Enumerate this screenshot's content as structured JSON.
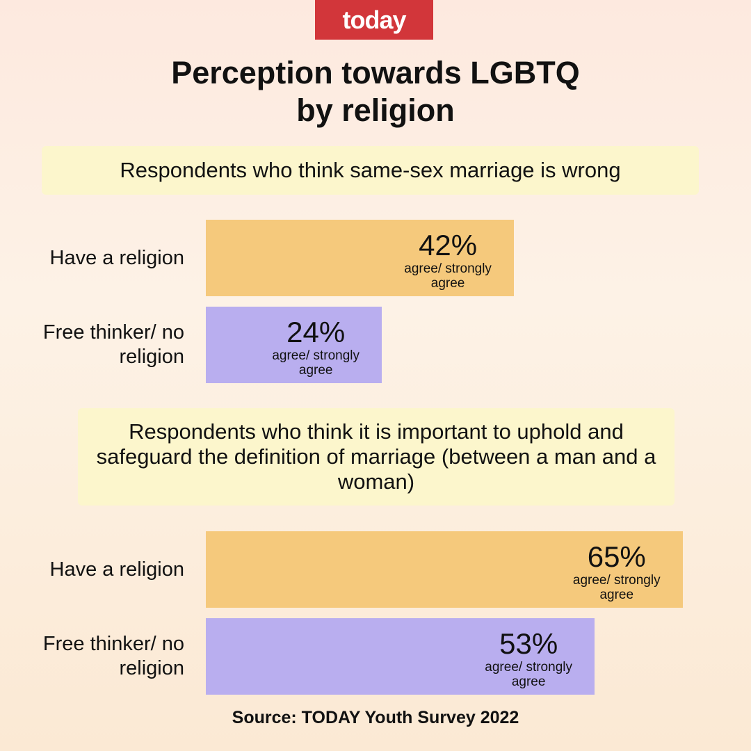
{
  "brand": "today",
  "title": "Perception towards LGBTQ by religion",
  "source": "Source: TODAY Youth Survey 2022",
  "chart_data": [
    {
      "type": "bar",
      "orientation": "horizontal",
      "title": "Respondents who think same-sex marriage is wrong",
      "categories": [
        "Have a religion",
        "Free thinker/ no religion"
      ],
      "values": [
        42,
        24
      ],
      "value_labels": [
        "42%",
        "24%"
      ],
      "bar_note": "agree/ strongly agree",
      "colors": [
        "#f5c97c",
        "#b9aeef"
      ]
    },
    {
      "type": "bar",
      "orientation": "horizontal",
      "title": "Respondents who think it is important to uphold and safeguard the definition of marriage (between a man and a woman)",
      "categories": [
        "Have a religion",
        "Free thinker/ no religion"
      ],
      "values": [
        65,
        53
      ],
      "value_labels": [
        "65%",
        "53%"
      ],
      "bar_note": "agree/ strongly agree",
      "colors": [
        "#f5c97c",
        "#b9aeef"
      ]
    }
  ]
}
